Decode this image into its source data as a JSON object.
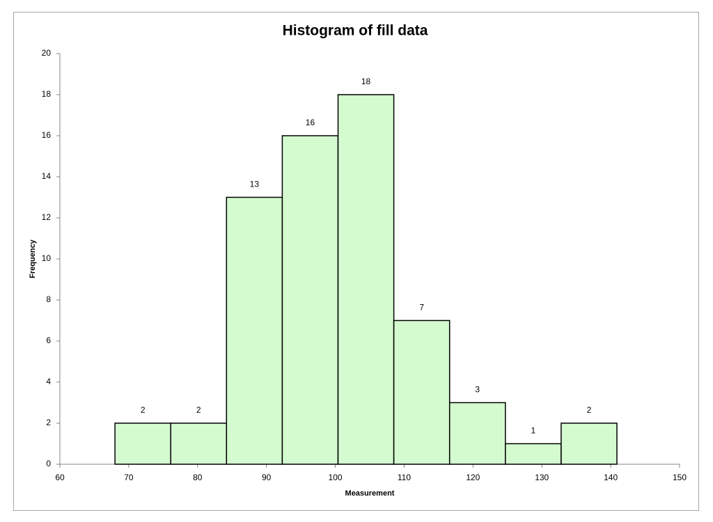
{
  "chart_data": {
    "type": "histogram",
    "title": "Histogram of fill data",
    "x_label": "Measurement",
    "y_label": "Frequency",
    "bins": [
      68,
      76.1,
      84.2,
      92.3,
      100.4,
      108.5,
      116.6,
      124.7,
      132.8,
      140.9
    ],
    "counts": [
      2,
      2,
      13,
      16,
      18,
      7,
      3,
      1,
      2
    ],
    "color": "#d4fad0",
    "edge_color": "#000000",
    "xlim": [
      60,
      150
    ],
    "xticks": [
      60,
      70,
      80,
      90,
      100,
      110,
      120,
      130,
      140,
      150
    ],
    "ylim": [
      0,
      20
    ],
    "yticks": [
      0,
      2,
      4,
      6,
      8,
      10,
      12,
      14,
      16,
      18,
      20
    ],
    "grid": false
  }
}
